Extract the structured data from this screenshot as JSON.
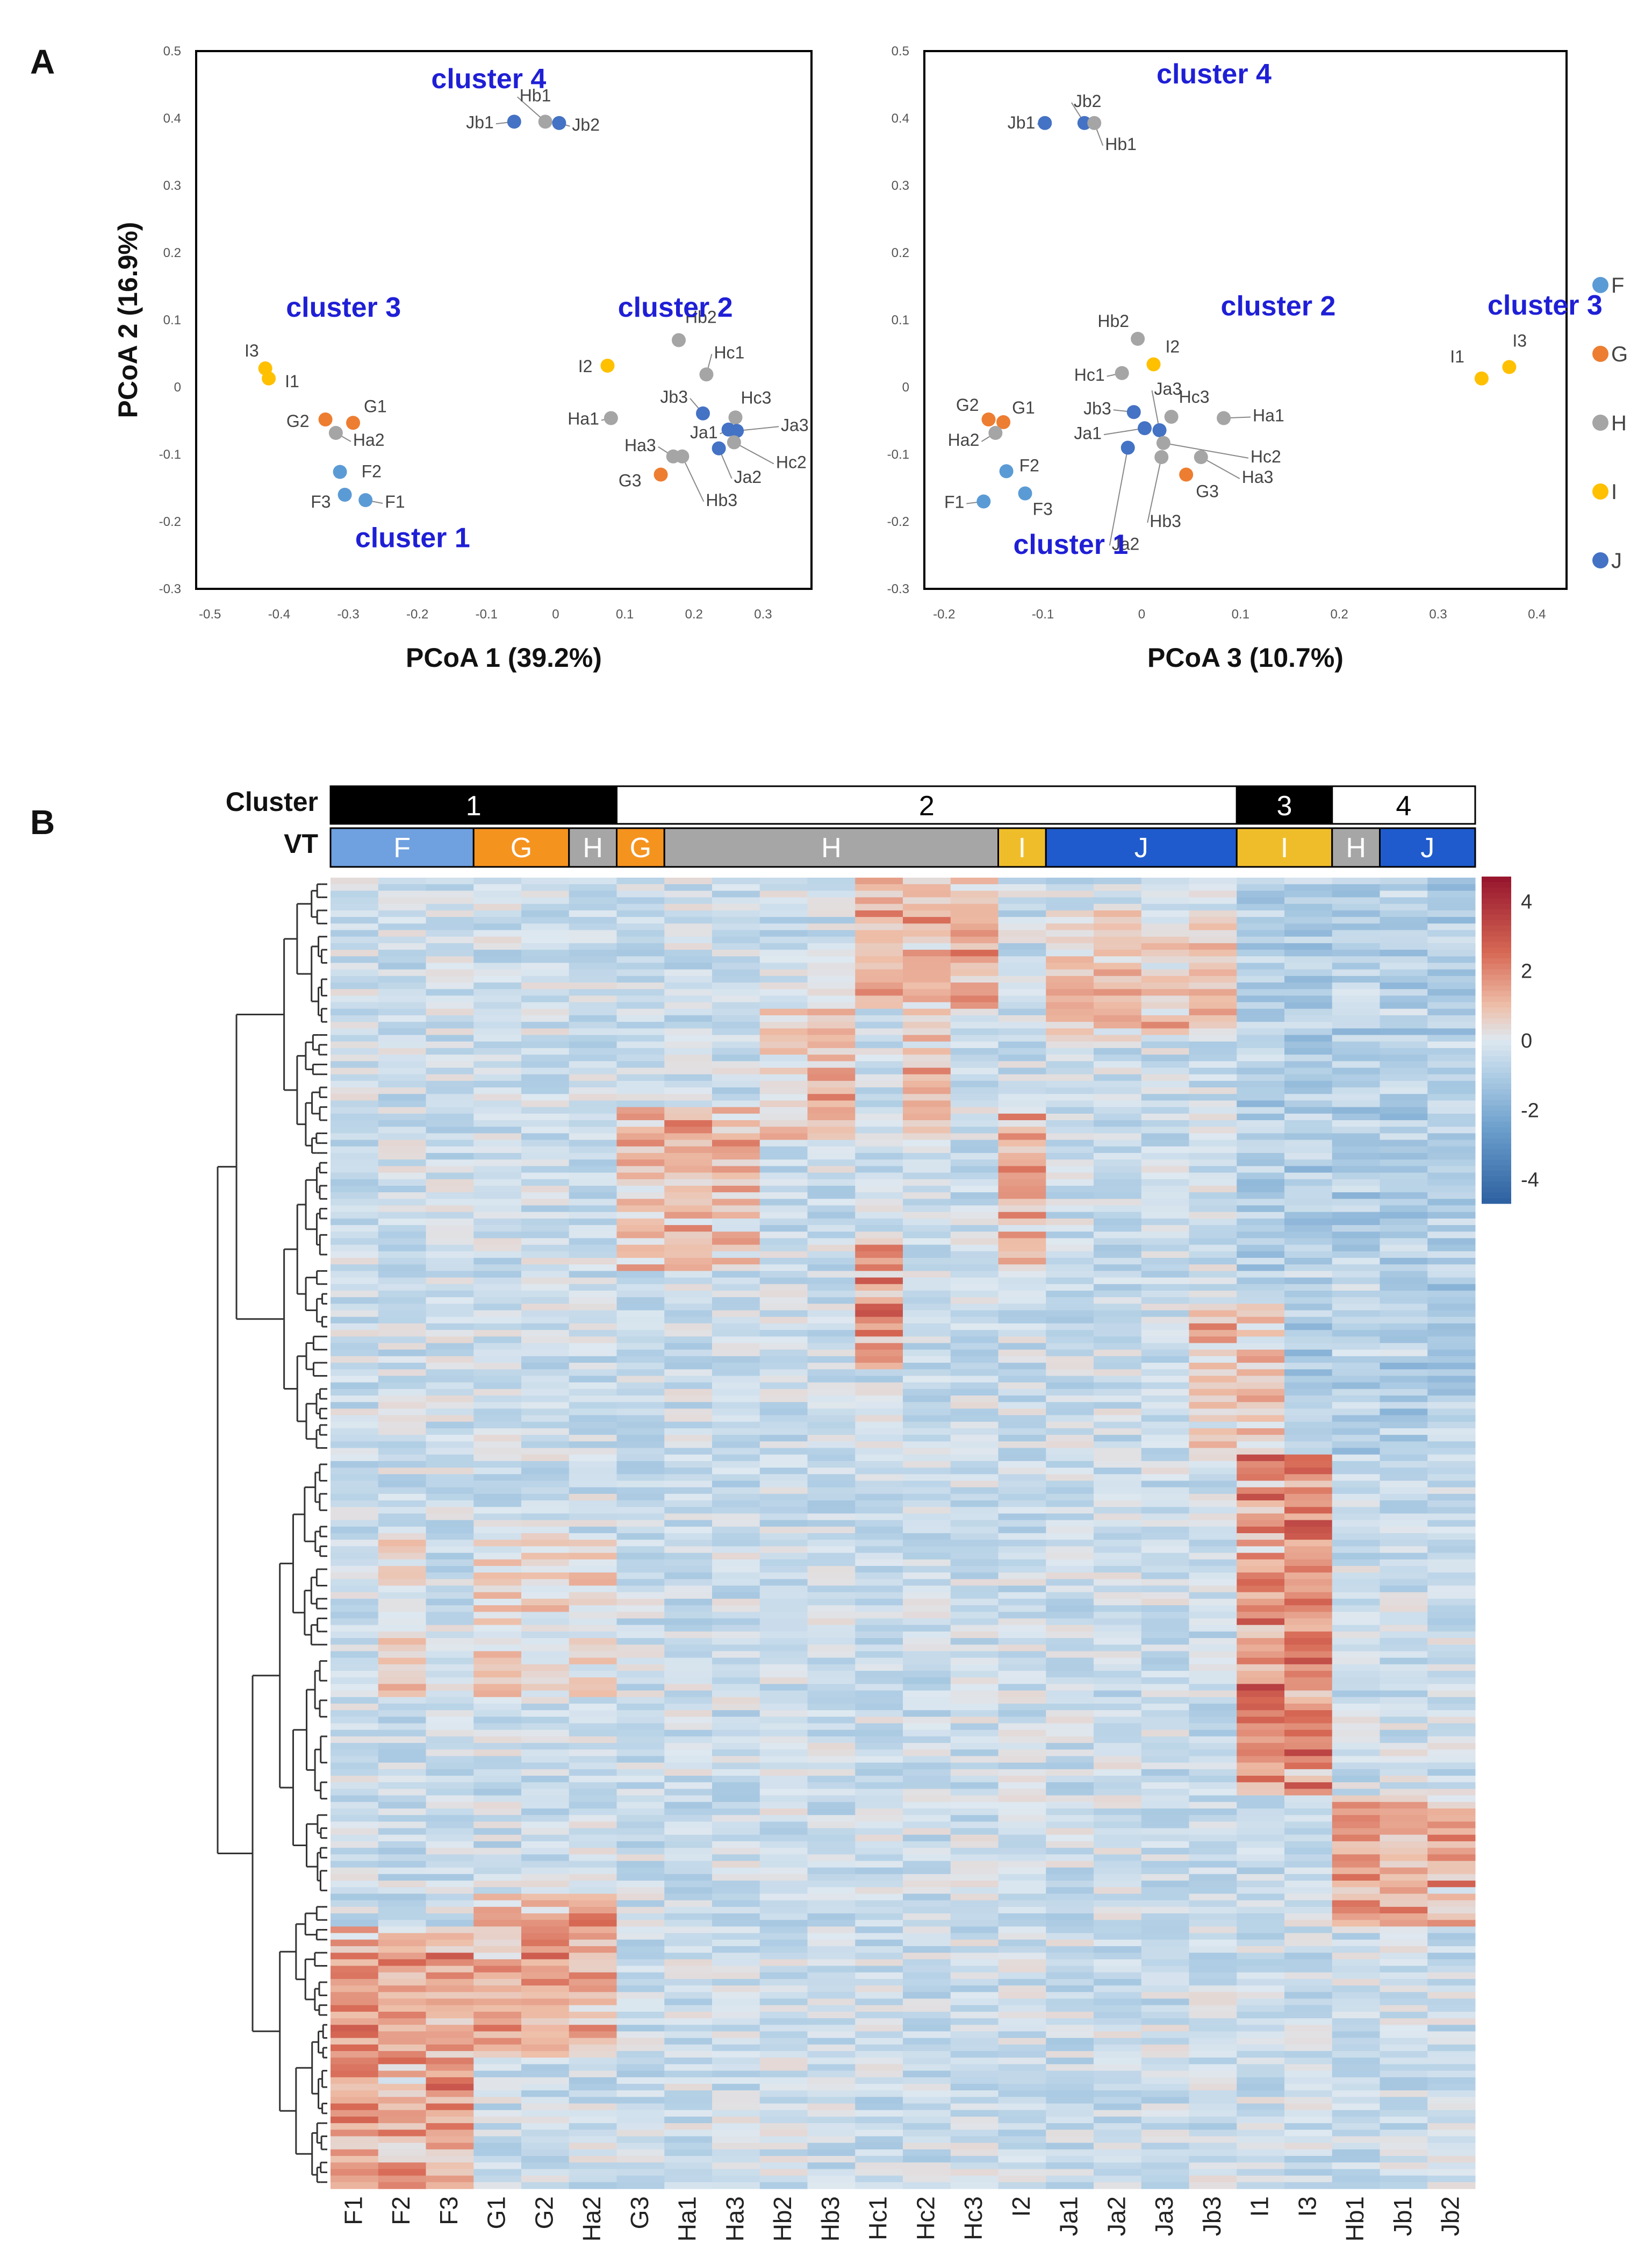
{
  "panel_labels": {
    "a": "A",
    "b": "B"
  },
  "group_colors": {
    "F": "#5b9bd5",
    "G": "#ed7d31",
    "H": "#a5a5a5",
    "I": "#ffc000",
    "J": "#4472c4"
  },
  "legend": [
    "F",
    "G",
    "H",
    "I",
    "J"
  ],
  "cluster_color": "#1f1fd6",
  "chart_data": [
    {
      "type": "scatter",
      "id": "pcoa12",
      "xlabel": "PCoA 1 (39.2%)",
      "ylabel": "PCoA 2 (16.9%)",
      "xlim": [
        -0.52,
        0.37
      ],
      "ylim": [
        -0.3,
        0.5
      ],
      "xticks": [
        "-0.5",
        "-0.4",
        "-0.3",
        "-0.2",
        "-0.1",
        "0",
        "0.1",
        "0.2",
        "0.3"
      ],
      "yticks": [
        "0.5",
        "0.4",
        "0.3",
        "0.2",
        "0.1",
        "0",
        "-0.1",
        "-0.2",
        "-0.3"
      ],
      "points": [
        {
          "label": "Jb1",
          "group": "J",
          "x": -0.06,
          "y": 0.395
        },
        {
          "label": "Hb1",
          "group": "H",
          "x": -0.015,
          "y": 0.395
        },
        {
          "label": "Jb2",
          "group": "J",
          "x": 0.005,
          "y": 0.393
        },
        {
          "label": "I3",
          "group": "I",
          "x": -0.42,
          "y": 0.028
        },
        {
          "label": "I1",
          "group": "I",
          "x": -0.415,
          "y": 0.013
        },
        {
          "label": "G2",
          "group": "G",
          "x": -0.333,
          "y": -0.048
        },
        {
          "label": "G1",
          "group": "G",
          "x": -0.293,
          "y": -0.053
        },
        {
          "label": "Ha2",
          "group": "H",
          "x": -0.318,
          "y": -0.068
        },
        {
          "label": "F2",
          "group": "F",
          "x": -0.312,
          "y": -0.126
        },
        {
          "label": "F3",
          "group": "F",
          "x": -0.305,
          "y": -0.16
        },
        {
          "label": "F1",
          "group": "F",
          "x": -0.275,
          "y": -0.168
        },
        {
          "label": "I2",
          "group": "I",
          "x": 0.075,
          "y": 0.032
        },
        {
          "label": "Hb2",
          "group": "H",
          "x": 0.178,
          "y": 0.07
        },
        {
          "label": "Hc1",
          "group": "H",
          "x": 0.218,
          "y": 0.019
        },
        {
          "label": "Ha1",
          "group": "H",
          "x": 0.08,
          "y": -0.046
        },
        {
          "label": "Jb3",
          "group": "J",
          "x": 0.213,
          "y": -0.039
        },
        {
          "label": "Hc3",
          "group": "H",
          "x": 0.26,
          "y": -0.045
        },
        {
          "label": "Ja1",
          "group": "J",
          "x": 0.25,
          "y": -0.063
        },
        {
          "label": "Ja3",
          "group": "J",
          "x": 0.262,
          "y": -0.065
        },
        {
          "label": "Hc2",
          "group": "H",
          "x": 0.258,
          "y": -0.082
        },
        {
          "label": "Ja2",
          "group": "J",
          "x": 0.236,
          "y": -0.091
        },
        {
          "label": "Ha3",
          "group": "H",
          "x": 0.17,
          "y": -0.103
        },
        {
          "label": "Hb3",
          "group": "H",
          "x": 0.183,
          "y": -0.103
        },
        {
          "label": "G3",
          "group": "G",
          "x": 0.152,
          "y": -0.13
        }
      ],
      "clusters": [
        {
          "label": "cluster 1",
          "x": -0.29,
          "y": -0.238
        },
        {
          "label": "cluster 2",
          "x": 0.09,
          "y": 0.105
        },
        {
          "label": "cluster 3",
          "x": -0.39,
          "y": 0.105
        },
        {
          "label": "cluster 4",
          "x": -0.18,
          "y": 0.445
        }
      ]
    },
    {
      "type": "scatter",
      "id": "pcoa32",
      "xlabel": "PCoA 3 (10.7%)",
      "ylabel": "",
      "xlim": [
        -0.22,
        0.43
      ],
      "ylim": [
        -0.3,
        0.5
      ],
      "xticks": [
        "-0.2",
        "-0.1",
        "0",
        "0.1",
        "0.2",
        "0.3",
        "0.4"
      ],
      "yticks": [
        "0.5",
        "0.4",
        "0.3",
        "0.2",
        "0.1",
        "0",
        "-0.1",
        "-0.2",
        "-0.3"
      ],
      "points": [
        {
          "label": "Jb1",
          "group": "J",
          "x": -0.098,
          "y": 0.393
        },
        {
          "label": "Jb2",
          "group": "J",
          "x": -0.058,
          "y": 0.393
        },
        {
          "label": "Hb1",
          "group": "H",
          "x": -0.048,
          "y": 0.393
        },
        {
          "label": "Hb2",
          "group": "H",
          "x": -0.004,
          "y": 0.072
        },
        {
          "label": "I2",
          "group": "I",
          "x": 0.012,
          "y": 0.034
        },
        {
          "label": "Hc1",
          "group": "H",
          "x": -0.02,
          "y": 0.021
        },
        {
          "label": "G2",
          "group": "G",
          "x": -0.155,
          "y": -0.048
        },
        {
          "label": "G1",
          "group": "G",
          "x": -0.14,
          "y": -0.052
        },
        {
          "label": "Ha2",
          "group": "H",
          "x": -0.148,
          "y": -0.068
        },
        {
          "label": "Jb3",
          "group": "J",
          "x": -0.008,
          "y": -0.037
        },
        {
          "label": "Hc3",
          "group": "H",
          "x": 0.03,
          "y": -0.044
        },
        {
          "label": "Ha1",
          "group": "H",
          "x": 0.083,
          "y": -0.046
        },
        {
          "label": "Ja1",
          "group": "J",
          "x": 0.003,
          "y": -0.061
        },
        {
          "label": "Ja3",
          "group": "J",
          "x": 0.018,
          "y": -0.064
        },
        {
          "label": "Hc2",
          "group": "H",
          "x": 0.022,
          "y": -0.083
        },
        {
          "label": "Ja2",
          "group": "J",
          "x": -0.014,
          "y": -0.09
        },
        {
          "label": "Hb3",
          "group": "H",
          "x": 0.02,
          "y": -0.104
        },
        {
          "label": "Ha3",
          "group": "H",
          "x": 0.06,
          "y": -0.104
        },
        {
          "label": "G3",
          "group": "G",
          "x": 0.045,
          "y": -0.13
        },
        {
          "label": "F2",
          "group": "F",
          "x": -0.137,
          "y": -0.125
        },
        {
          "label": "F3",
          "group": "F",
          "x": -0.118,
          "y": -0.158
        },
        {
          "label": "F1",
          "group": "F",
          "x": -0.16,
          "y": -0.17
        },
        {
          "label": "I1",
          "group": "I",
          "x": 0.344,
          "y": 0.013
        },
        {
          "label": "I3",
          "group": "I",
          "x": 0.372,
          "y": 0.03
        }
      ],
      "clusters": [
        {
          "label": "cluster 1",
          "x": -0.13,
          "y": -0.248
        },
        {
          "label": "cluster 2",
          "x": 0.08,
          "y": 0.107
        },
        {
          "label": "cluster 3",
          "x": 0.35,
          "y": 0.108
        },
        {
          "label": "cluster 4",
          "x": 0.015,
          "y": 0.452
        }
      ]
    },
    {
      "type": "heatmap",
      "id": "heatmap",
      "cluster_row_label": "Cluster",
      "vt_row_label": "VT",
      "samples": [
        "F1",
        "F2",
        "F3",
        "G1",
        "G2",
        "Ha2",
        "G3",
        "Ha1",
        "Ha3",
        "Hb2",
        "Hb3",
        "Hc1",
        "Hc2",
        "Hc3",
        "I2",
        "Ja1",
        "Ja2",
        "Ja3",
        "Jb3",
        "I1",
        "I3",
        "Hb1",
        "Jb1",
        "Jb2"
      ],
      "cluster_bar": [
        {
          "label": "1",
          "span": 6,
          "fill": "#000000",
          "text_color": "#ffffff"
        },
        {
          "label": "2",
          "span": 13,
          "fill": "#ffffff",
          "text_color": "#000000"
        },
        {
          "label": "3",
          "span": 2,
          "fill": "#000000",
          "text_color": "#ffffff"
        },
        {
          "label": "4",
          "span": 3,
          "fill": "#ffffff",
          "text_color": "#000000"
        }
      ],
      "vt_bar": [
        {
          "label": "F",
          "span": 3,
          "fill": "#6fa0e0"
        },
        {
          "label": "G",
          "span": 2,
          "fill": "#f5931f"
        },
        {
          "label": "H",
          "span": 1,
          "fill": "#a6a6a6"
        },
        {
          "label": "G",
          "span": 1,
          "fill": "#f5931f"
        },
        {
          "label": "H",
          "span": 7,
          "fill": "#a6a6a6"
        },
        {
          "label": "I",
          "span": 1,
          "fill": "#f0bd2a"
        },
        {
          "label": "J",
          "span": 4,
          "fill": "#1f5bcc"
        },
        {
          "label": "I",
          "span": 2,
          "fill": "#f0bd2a"
        },
        {
          "label": "H",
          "span": 1,
          "fill": "#a6a6a6"
        },
        {
          "label": "J",
          "span": 2,
          "fill": "#1f5bcc"
        }
      ],
      "scale": {
        "min": -4.7,
        "max": 4.7,
        "ticks": [
          "4",
          "2",
          "0",
          "-2",
          "-4"
        ]
      },
      "n_rows": 200
    }
  ]
}
